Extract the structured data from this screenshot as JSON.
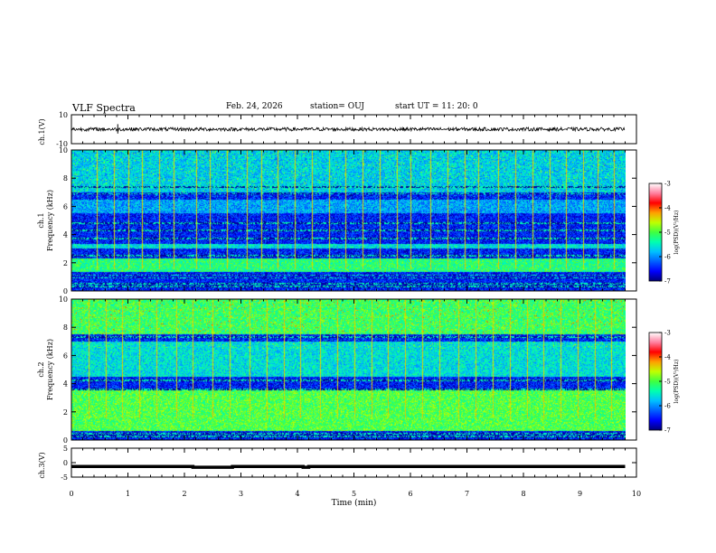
{
  "header": {
    "title": "VLF Spectra",
    "date": "Feb. 24, 2026",
    "station": "station= OUJ",
    "start_ut": "start  UT =   11: 20: 0"
  },
  "colors": {
    "background": "#ffffff",
    "axis": "#000000",
    "trace": "#000000",
    "colormap": [
      "#00007a",
      "#0000ff",
      "#0060ff",
      "#00c0ff",
      "#00ffb0",
      "#40ff40",
      "#c0ff00",
      "#ffa000",
      "#ff0000",
      "#ff80a0",
      "#ffffff"
    ]
  },
  "chart_data": [
    {
      "type": "line",
      "panel": "ch1-waveform",
      "ylabel": "ch.1(V)",
      "ylim": [
        -10,
        10
      ],
      "y_ticks": [
        "10",
        "-10"
      ],
      "xlim": [
        0,
        10
      ],
      "baseline_value": 0,
      "grid": false
    },
    {
      "type": "heatmap",
      "panel": "ch1-spectrogram",
      "ylabel_line1": "ch.1",
      "ylabel_line2": "Frequency (kHz)",
      "ylim": [
        0,
        10
      ],
      "y_ticks": [
        "0",
        "2",
        "4",
        "6",
        "8",
        "10"
      ],
      "xlim": [
        0,
        9.8
      ],
      "colorbar": {
        "label": "log(PSD)(V²/Hz)",
        "range": [
          -7,
          -3
        ],
        "ticks": [
          "-3",
          "-4",
          "-5",
          "-6",
          "-7"
        ]
      },
      "bands_khz": [
        {
          "low": 1.3,
          "high": 2.3,
          "level": -5.2
        },
        {
          "low": 3.0,
          "high": 3.3,
          "level": -5.6
        },
        {
          "low": 5.5,
          "high": 6.5,
          "level": -5.9
        },
        {
          "low": 7.0,
          "high": 10.0,
          "level": -5.7
        }
      ],
      "lines_khz": [
        0.3,
        0.5,
        0.9,
        1.1,
        2.5,
        3.7,
        4.3,
        4.8,
        6.9,
        7.4
      ],
      "burst_times_min": [
        0.45,
        0.75,
        1.0,
        1.25,
        1.55,
        1.8,
        2.2,
        2.45,
        2.75,
        3.1,
        3.35,
        3.65,
        3.95,
        4.25,
        4.55,
        4.85,
        5.15,
        5.45,
        5.75,
        6.0,
        6.35,
        6.65,
        6.95,
        7.2,
        7.55,
        7.85,
        8.15,
        8.45,
        8.75,
        9.05,
        9.3,
        9.6
      ]
    },
    {
      "type": "heatmap",
      "panel": "ch2-spectrogram",
      "ylabel_line1": "ch.2",
      "ylabel_line2": "Frequency (kHz)",
      "ylim": [
        0,
        10
      ],
      "y_ticks": [
        "0",
        "2",
        "4",
        "6",
        "8",
        "10"
      ],
      "xlim": [
        0,
        9.8
      ],
      "colorbar": {
        "label": "log(PSD)(V²/Hz)",
        "range": [
          -7,
          -3
        ],
        "ticks": [
          "-3",
          "-4",
          "-5",
          "-6",
          "-7"
        ]
      },
      "bands_khz": [
        {
          "low": 0.6,
          "high": 3.5,
          "level": -5.0
        },
        {
          "low": 4.5,
          "high": 7.0,
          "level": -5.6
        },
        {
          "low": 7.5,
          "high": 10.0,
          "level": -5.1
        }
      ],
      "lines_khz": [
        0.2,
        0.4,
        3.6,
        4.2,
        7.3
      ],
      "burst_times_min": [
        0.3,
        0.6,
        0.9,
        1.2,
        1.5,
        1.85,
        2.15,
        2.5,
        2.8,
        3.15,
        3.45,
        3.75,
        4.05,
        4.4,
        4.7,
        5.0,
        5.3,
        5.6,
        5.9,
        6.2,
        6.5,
        6.85,
        7.15,
        7.45,
        7.75,
        8.05,
        8.35,
        8.65,
        8.95,
        9.25,
        9.55
      ]
    },
    {
      "type": "line",
      "panel": "ch3-waveform",
      "ylabel": "ch.3(V)",
      "ylim": [
        -5,
        5
      ],
      "y_ticks": [
        "5",
        "0",
        "-5"
      ],
      "xlim": [
        0,
        10
      ],
      "xlabel": "Time (min)",
      "x_ticks": [
        "0",
        "1",
        "2",
        "3",
        "4",
        "5",
        "6",
        "7",
        "8",
        "9",
        "10"
      ],
      "x": [
        0,
        2.15,
        2.15,
        2.85,
        2.85,
        4.1,
        4.1,
        4.2,
        4.2,
        9.8
      ],
      "y": [
        -1.3,
        -1.3,
        -1.6,
        -1.6,
        -1.3,
        -1.3,
        -1.6,
        -1.6,
        -1.3,
        -1.3
      ]
    }
  ]
}
